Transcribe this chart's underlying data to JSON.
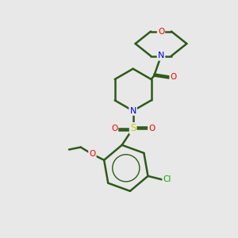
{
  "background_color": "#e8e8e8",
  "bond_color": "#2d5a1b",
  "atom_colors": {
    "N": "#0000ff",
    "O": "#ff0000",
    "S": "#cccc00",
    "Cl": "#00aa00",
    "C": "#2d5a1b"
  },
  "figsize": [
    3.0,
    3.0
  ],
  "dpi": 100
}
